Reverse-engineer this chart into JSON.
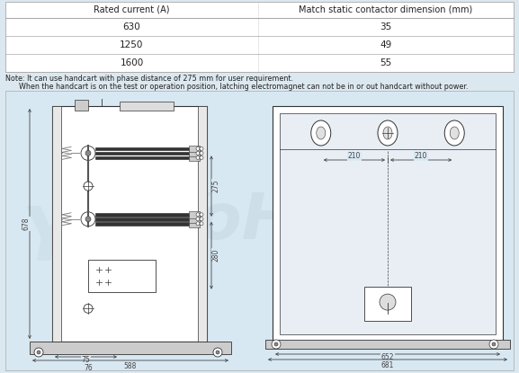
{
  "bg_color": "#dce8f0",
  "table_bg": "#ffffff",
  "border_color": "#aaaaaa",
  "text_color": "#222222",
  "dim_color": "#444444",
  "lc": "#333333",
  "table_headers": [
    "Rated current (A)",
    "Match static contactor dimension (mm)"
  ],
  "table_rows": [
    [
      "630",
      "35"
    ],
    [
      "1250",
      "49"
    ],
    [
      "1600",
      "55"
    ]
  ],
  "note_line1": "Note: It can use handcart with phase distance of 275 mm for user requirement.",
  "note_line2": "      When the handcart is on the test or operation position, latching electromagnet can not be in or out handcart without power.",
  "watermark_text": "YoHD",
  "left_dims": {
    "width": "588",
    "height": "678",
    "d1": "275",
    "d2": "280",
    "d3": "75",
    "d4": "76"
  },
  "right_dims": {
    "width_inner": "652",
    "width_outer": "681",
    "spacing": "210"
  }
}
